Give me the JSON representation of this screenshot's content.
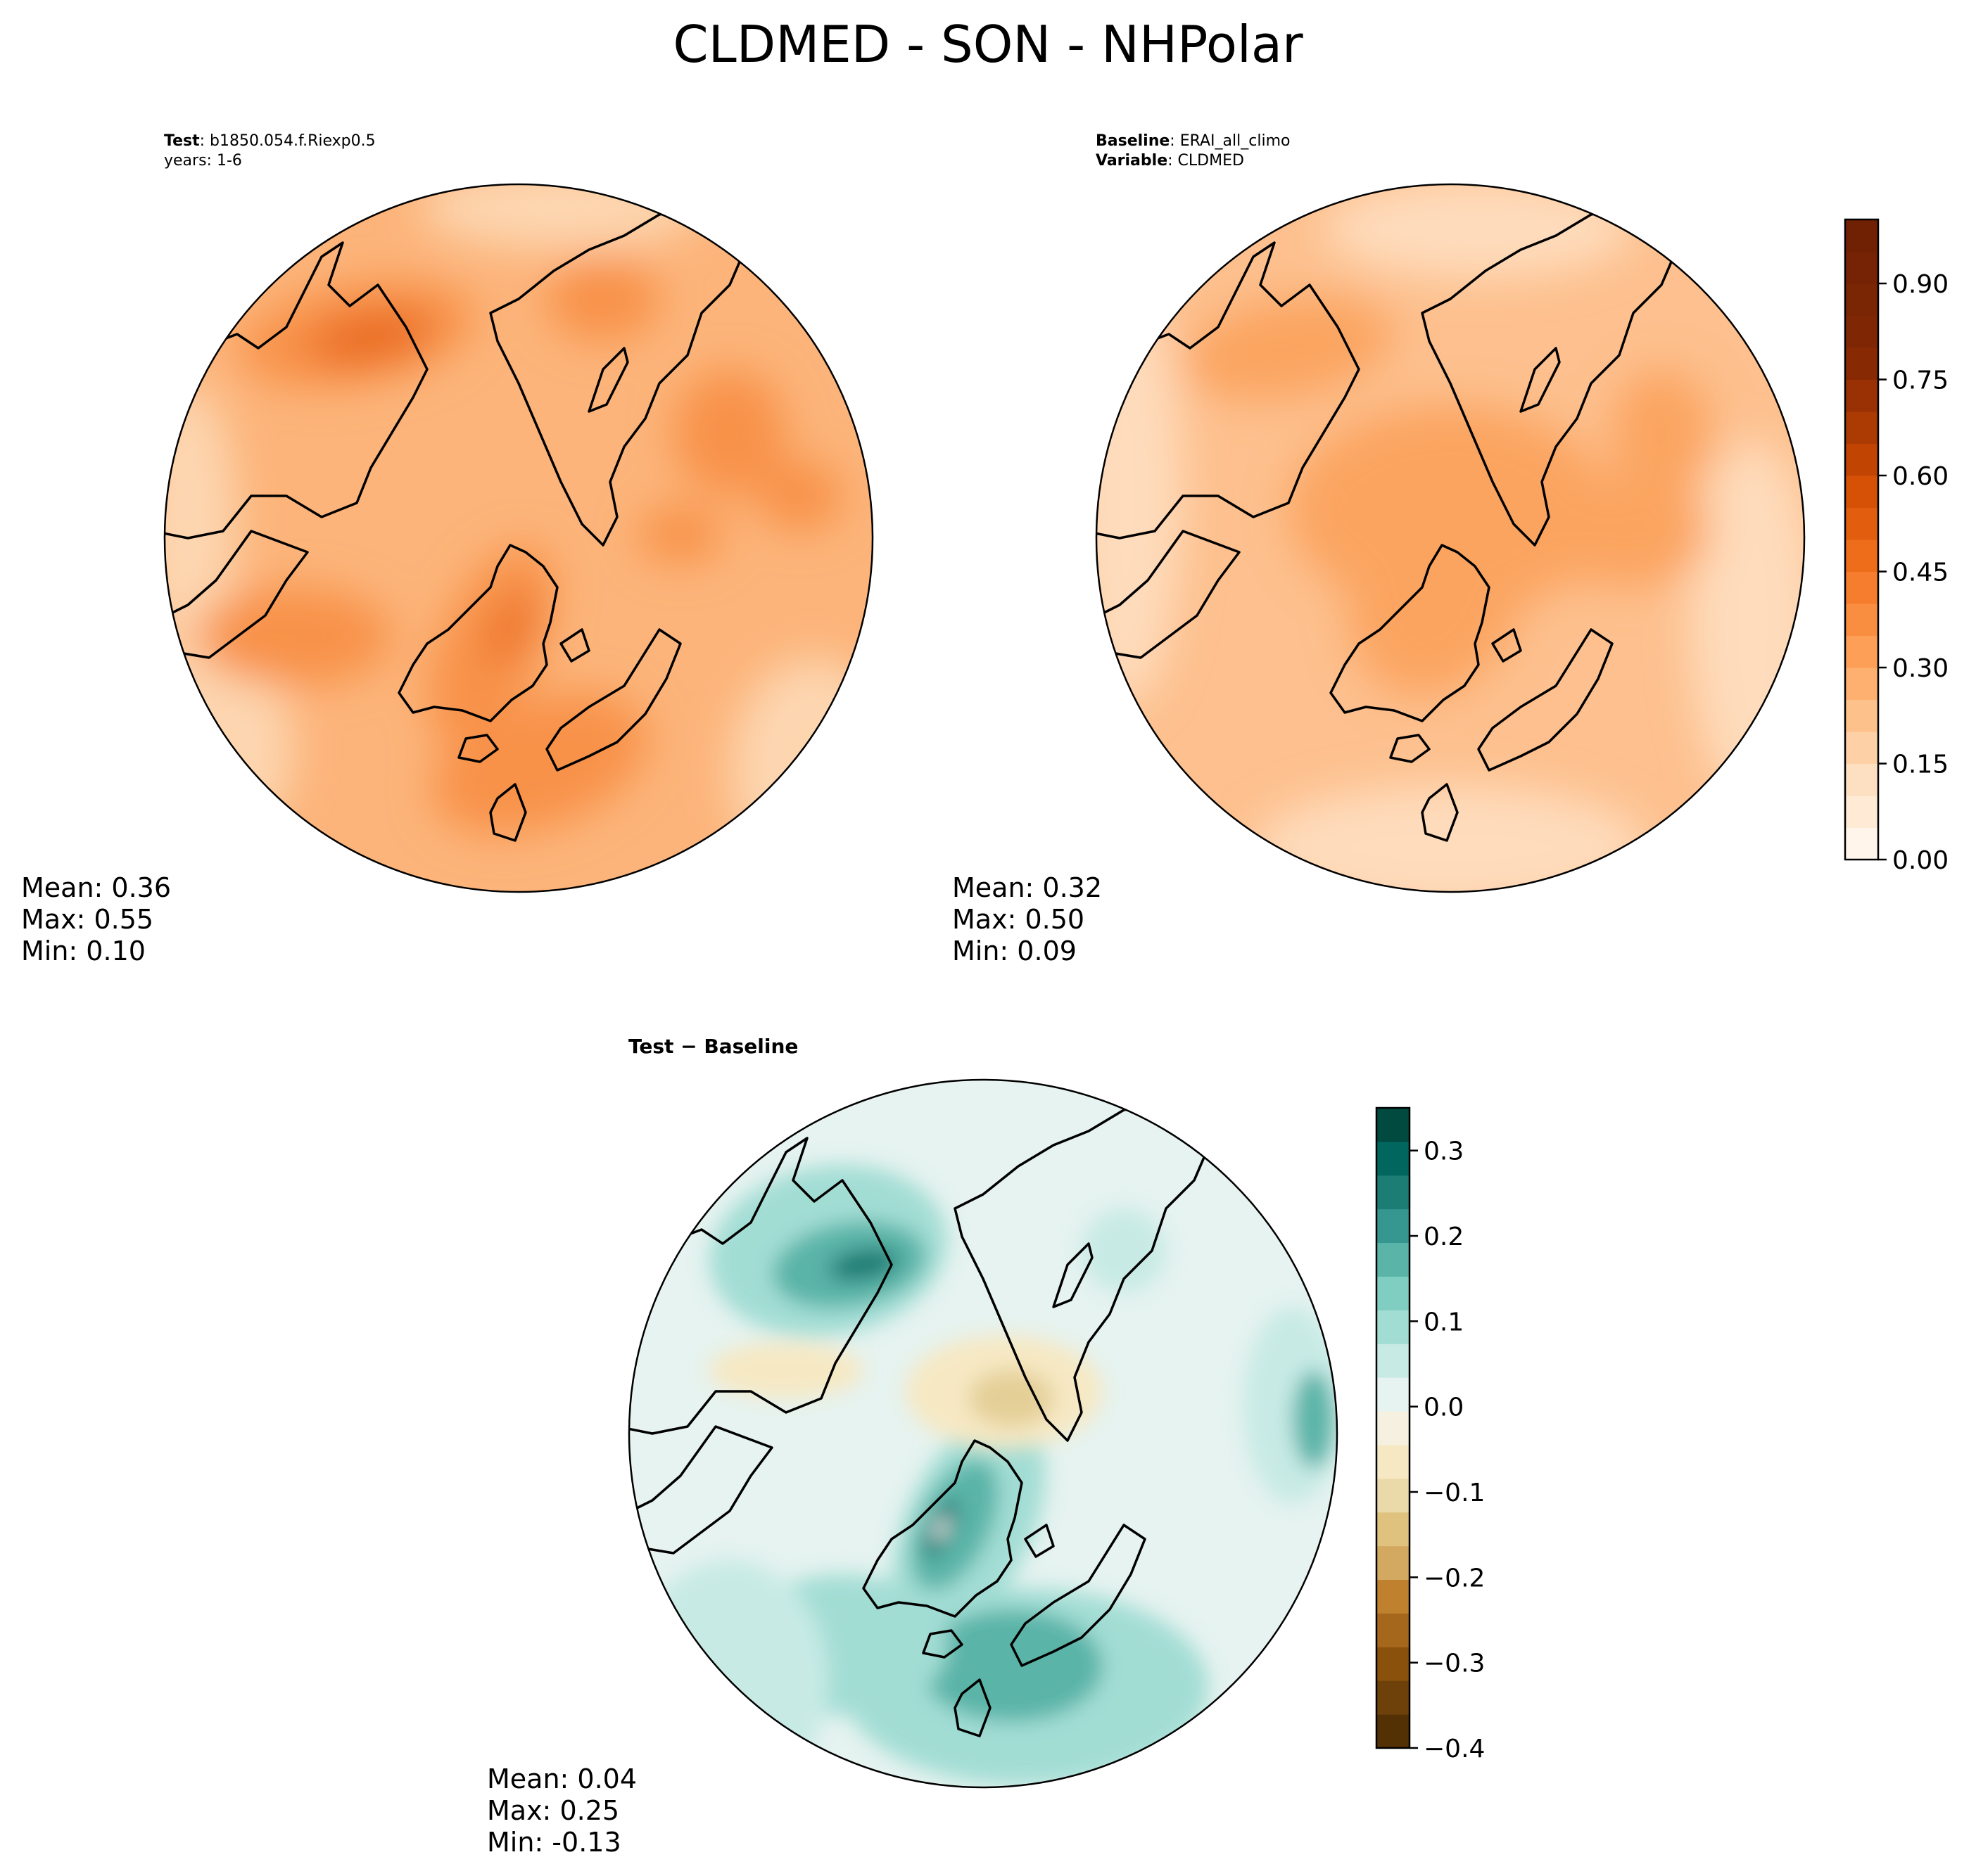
{
  "title": "CLDMED - SON - NHPolar",
  "panels": {
    "test": {
      "label_bold": "Test",
      "label_sep": ": ",
      "label_value": "b1850.054.f.Riexp0.5",
      "line2": "years: 1-6",
      "stats": {
        "mean": "Mean:  0.36",
        "max": "Max:  0.55",
        "min": "Min:  0.10"
      }
    },
    "baseline": {
      "label_bold": "Baseline",
      "label_sep": ": ",
      "label_value": "ERAI_all_climo",
      "line2_bold": "Variable",
      "line2_sep": ": ",
      "line2_value": "CLDMED",
      "stats": {
        "mean": "Mean:  0.32",
        "max": "Max:  0.50",
        "min": "Min:  0.09"
      }
    },
    "diff": {
      "label_part1": "Test",
      "label_part2": " − ",
      "label_part3": "Baseline",
      "stats": {
        "mean": "Mean:  0.04",
        "max": "Max:  0.25",
        "min": "Min: -0.13"
      }
    }
  },
  "colorbars": {
    "main": {
      "ticks": [
        "0.00",
        "0.15",
        "0.30",
        "0.45",
        "0.60",
        "0.75",
        "0.90"
      ],
      "tick_values": [
        0,
        0.15,
        0.3,
        0.45,
        0.6,
        0.75,
        0.9
      ],
      "range": [
        0,
        1.0
      ],
      "colors": [
        "#fff5eb",
        "#feead5",
        "#fde0c2",
        "#fdd1a5",
        "#fdc28b",
        "#fdb06f",
        "#fd9f56",
        "#fa8e40",
        "#f67d2d",
        "#ee6d1b",
        "#e35d0e",
        "#d65005",
        "#c24403",
        "#ab3a03",
        "#993104",
        "#872a04",
        "#7f2704",
        "#7a2504",
        "#752304",
        "#702104"
      ]
    },
    "diff": {
      "ticks": [
        "0.3",
        "0.2",
        "0.1",
        "0.0",
        "−0.1",
        "−0.2",
        "−0.3",
        "−0.4"
      ],
      "tick_values": [
        0.3,
        0.2,
        0.1,
        0.0,
        -0.1,
        -0.2,
        -0.3,
        -0.4
      ],
      "range": [
        -0.4,
        0.35
      ],
      "colors": [
        "#543005",
        "#6e400a",
        "#8a510d",
        "#a5671b",
        "#bf812d",
        "#d3a860",
        "#dfc27d",
        "#ebdaa9",
        "#f6e8c3",
        "#f5f0e0",
        "#e6f3f0",
        "#c7eae5",
        "#a2ddd4",
        "#80cdc1",
        "#5ab4a8",
        "#35978f",
        "#1b7d74",
        "#01665e",
        "#004a40"
      ]
    }
  },
  "map_colors": {
    "test_base": "#fcb47a",
    "test_dark": "#f8924a",
    "test_darker": "#e9691f",
    "test_light": "#fdd6b0",
    "base_base": "#fdc08e",
    "base_dark": "#fba461",
    "base_light": "#fedcbc",
    "diff_base": "#e6f3f0",
    "diff_teal": "#a2ddd4",
    "diff_teal_dark": "#5ab4a8",
    "diff_teal_darker": "#1b7d74",
    "diff_tan": "#f6e8c3",
    "diff_tan_dark": "#e4cf97",
    "coast": "#000000"
  }
}
